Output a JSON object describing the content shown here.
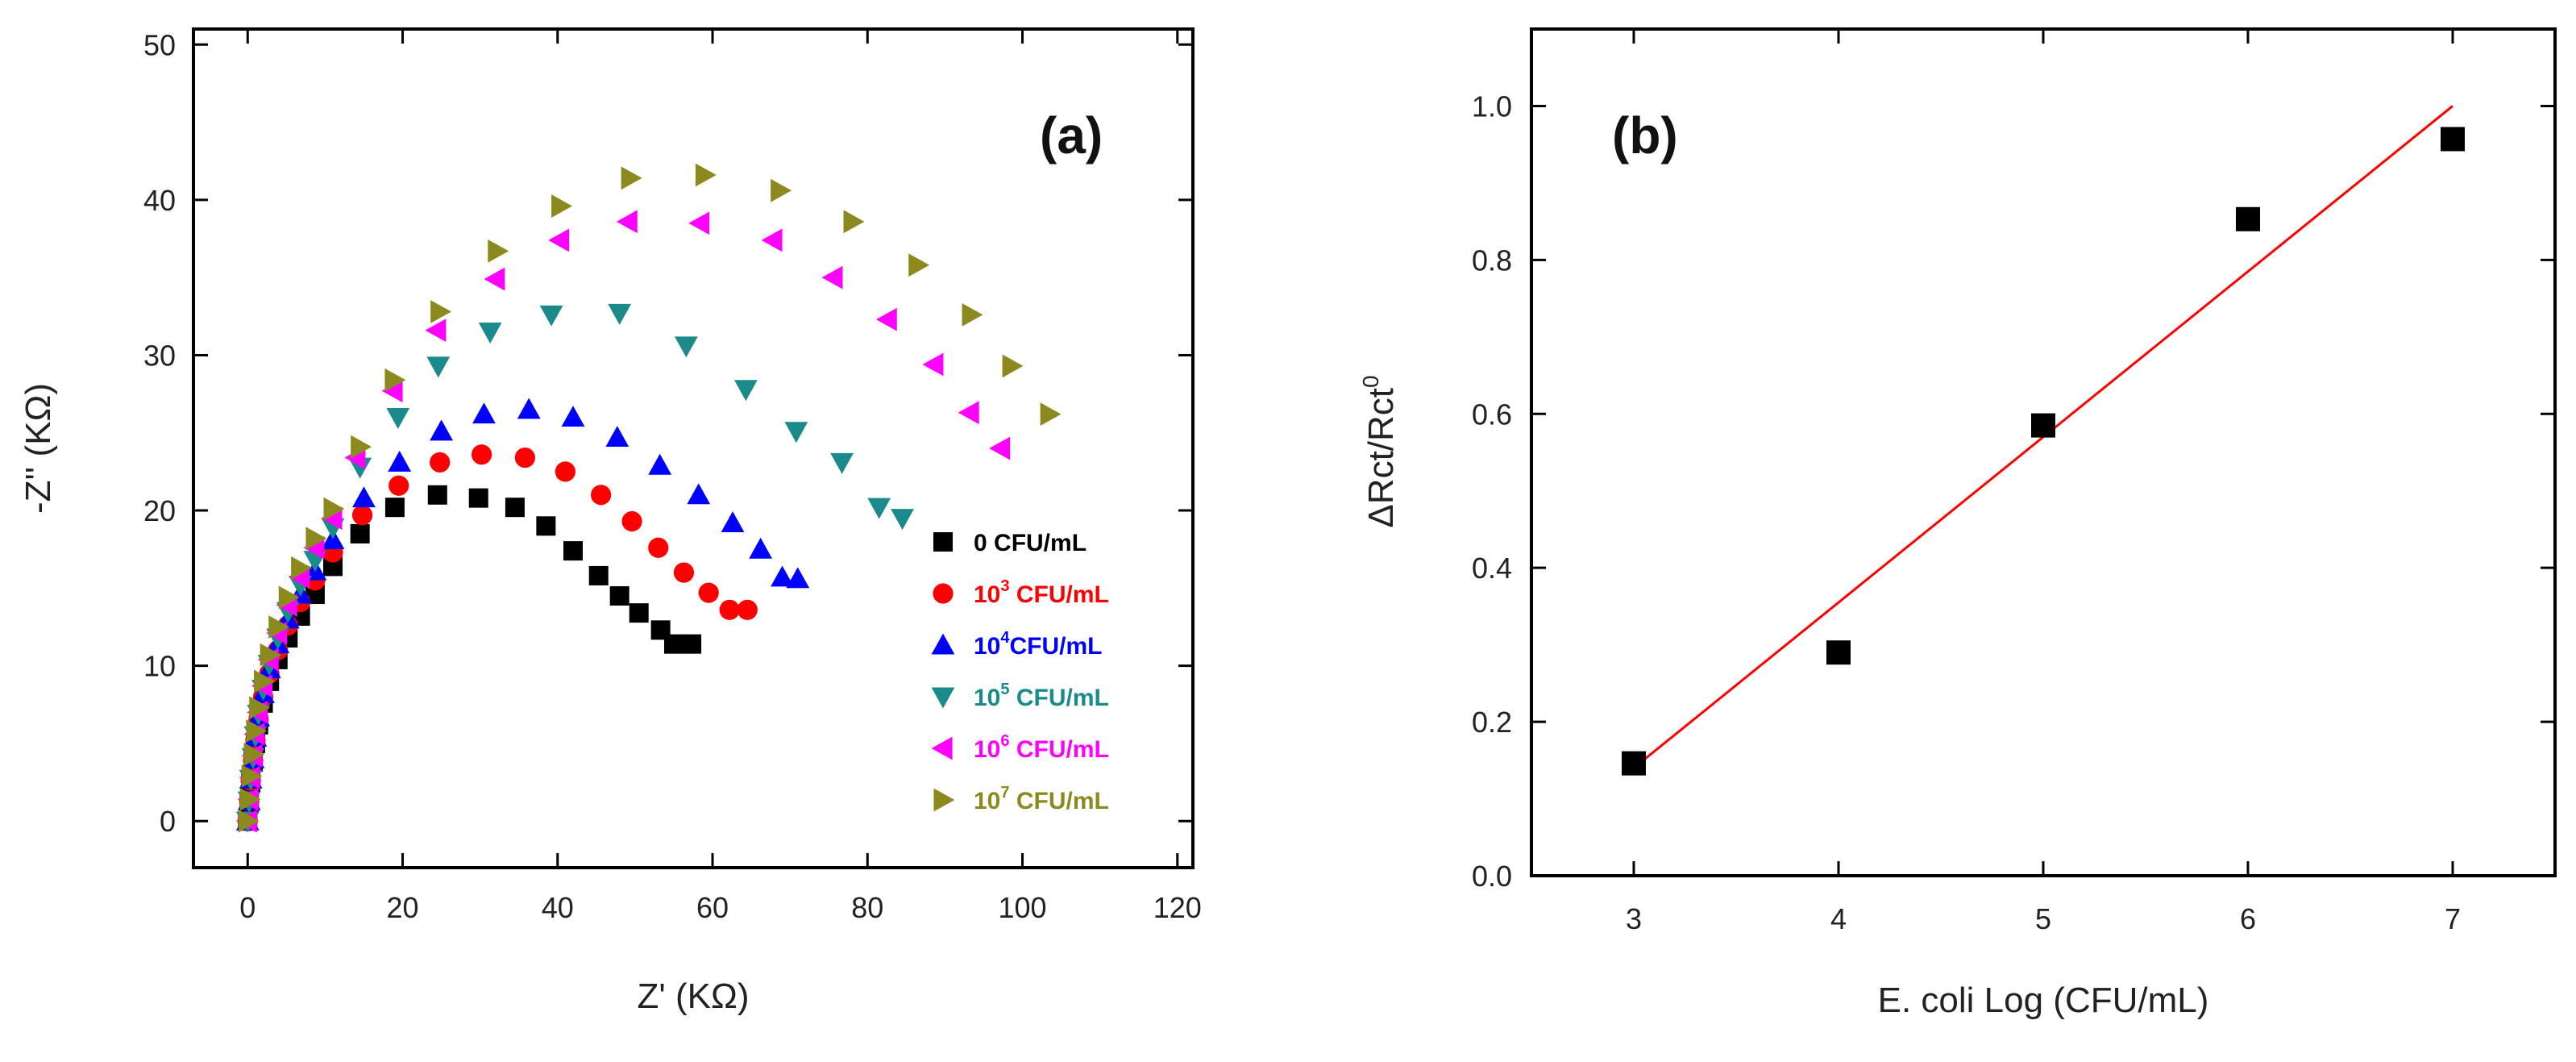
{
  "chart_data": [
    {
      "type": "scatter",
      "panel_label": "(a)",
      "xlabel": "Z' (KΩ)",
      "ylabel": "-Z'' (KΩ)",
      "xlim": [
        -7,
        122
      ],
      "ylim": [
        -3,
        51
      ],
      "xticks": [
        0,
        20,
        40,
        60,
        80,
        100,
        120
      ],
      "yticks": [
        0,
        10,
        20,
        30,
        40,
        50
      ],
      "grid": false,
      "legend_position": "right",
      "series": [
        {
          "name": "0 CFU/mL",
          "base": "0",
          "exp": "",
          "unit": " CFU/mL",
          "color": "#000000",
          "marker": "square",
          "x": [
            0.0,
            0.2,
            0.4,
            0.7,
            1.0,
            1.4,
            2.0,
            2.8,
            3.9,
            5.2,
            6.8,
            8.7,
            11.0,
            14.5,
            19.0,
            24.5,
            29.8,
            34.5,
            38.5,
            42.0,
            45.3,
            48.0,
            50.5,
            53.3,
            55.0,
            57.3
          ],
          "y": [
            0.0,
            1.2,
            2.5,
            3.8,
            5.0,
            6.2,
            7.6,
            9.0,
            10.4,
            11.8,
            13.2,
            14.6,
            16.4,
            18.5,
            20.2,
            21.0,
            20.8,
            20.2,
            19.0,
            17.4,
            15.8,
            14.5,
            13.4,
            12.3,
            11.4,
            11.4
          ]
        },
        {
          "name": "10^3 CFU/mL",
          "base": "10",
          "exp": "3",
          "unit": " CFU/mL",
          "color": "#ff0000",
          "marker": "circle",
          "x": [
            0.0,
            0.2,
            0.4,
            0.7,
            1.0,
            1.4,
            2.0,
            2.8,
            3.9,
            5.2,
            6.8,
            8.7,
            11.0,
            14.8,
            19.5,
            24.8,
            30.2,
            35.8,
            41.0,
            45.6,
            49.6,
            53.0,
            56.3,
            59.5,
            62.2,
            64.5
          ],
          "y": [
            0.0,
            1.3,
            2.6,
            3.9,
            5.2,
            6.5,
            8.0,
            9.5,
            11.0,
            12.6,
            14.1,
            15.5,
            17.3,
            19.7,
            21.6,
            23.1,
            23.6,
            23.4,
            22.5,
            21.0,
            19.3,
            17.6,
            16.0,
            14.7,
            13.6,
            13.6
          ]
        },
        {
          "name": "10^4 CFU/mL",
          "base": "10",
          "exp": "4",
          "unit": "CFU/mL",
          "color": "#0000ff",
          "marker": "triangle-up",
          "x": [
            0.0,
            0.2,
            0.4,
            0.7,
            1.0,
            1.4,
            2.0,
            2.8,
            3.9,
            5.2,
            6.8,
            8.7,
            11.0,
            15.0,
            19.6,
            25.0,
            30.5,
            36.3,
            42.0,
            47.7,
            53.2,
            58.2,
            62.6,
            66.2,
            69.0,
            71.0
          ],
          "y": [
            0.0,
            1.3,
            2.7,
            4.0,
            5.4,
            6.7,
            8.2,
            9.8,
            11.4,
            13.0,
            14.6,
            16.1,
            18.1,
            20.8,
            23.1,
            25.1,
            26.2,
            26.5,
            26.0,
            24.7,
            22.9,
            21.0,
            19.2,
            17.5,
            15.7,
            15.6
          ]
        },
        {
          "name": "10^5 CFU/mL",
          "base": "10",
          "exp": "5",
          "unit": " CFU/mL",
          "color": "#1a8a8a",
          "marker": "triangle-down",
          "x": [
            0.0,
            0.2,
            0.4,
            0.7,
            1.0,
            1.4,
            2.0,
            2.8,
            3.9,
            5.2,
            6.8,
            8.7,
            11.0,
            14.5,
            19.4,
            24.6,
            31.3,
            39.2,
            48.0,
            56.6,
            64.3,
            70.8,
            76.7,
            81.5,
            84.5
          ],
          "y": [
            0.0,
            1.3,
            2.7,
            4.1,
            5.5,
            6.9,
            8.5,
            10.1,
            11.8,
            13.5,
            15.2,
            16.8,
            18.9,
            22.8,
            26.0,
            29.3,
            31.5,
            32.6,
            32.7,
            30.6,
            27.8,
            25.1,
            23.1,
            20.2,
            19.5
          ]
        },
        {
          "name": "10^6 CFU/mL",
          "base": "10",
          "exp": "6",
          "unit": " CFU/mL",
          "color": "#ff00ff",
          "marker": "triangle-left",
          "x": [
            0.0,
            0.2,
            0.4,
            0.7,
            1.0,
            1.4,
            2.0,
            2.8,
            3.9,
            5.2,
            6.8,
            8.7,
            11.0,
            14.0,
            18.8,
            24.4,
            32.0,
            40.3,
            49.1,
            58.4,
            67.8,
            75.6,
            82.6,
            88.6,
            93.2,
            97.2
          ],
          "y": [
            0.0,
            1.4,
            2.8,
            4.2,
            5.6,
            7.0,
            8.7,
            10.4,
            12.1,
            13.9,
            15.7,
            17.6,
            19.5,
            23.4,
            27.7,
            31.6,
            34.9,
            37.4,
            38.6,
            38.5,
            37.4,
            35.0,
            32.3,
            29.4,
            26.3,
            24.0
          ]
        },
        {
          "name": "10^7 CFU/mL",
          "base": "10",
          "exp": "7",
          "unit": " CFU/mL",
          "color": "#8c8a1e",
          "marker": "triangle-right",
          "x": [
            0.0,
            0.2,
            0.4,
            0.7,
            1.0,
            1.4,
            2.0,
            2.8,
            3.9,
            5.2,
            6.8,
            8.7,
            11.0,
            14.5,
            18.9,
            24.8,
            32.2,
            40.4,
            49.4,
            59.0,
            68.7,
            78.1,
            86.5,
            93.4,
            98.6,
            103.5
          ],
          "y": [
            0.0,
            1.4,
            2.9,
            4.3,
            5.8,
            7.3,
            9.0,
            10.7,
            12.5,
            14.4,
            16.3,
            18.2,
            20.1,
            24.1,
            28.4,
            32.8,
            36.7,
            39.6,
            41.4,
            41.6,
            40.6,
            38.6,
            35.8,
            32.6,
            29.3,
            26.2
          ]
        }
      ]
    },
    {
      "type": "scatter",
      "panel_label": "(b)",
      "xlabel": "E. coli Log (CFU/mL)",
      "ylabel_text": "ΔRct/Rct",
      "ylabel_sup": "0",
      "xlim": [
        2.5,
        7.5
      ],
      "ylim": [
        0.0,
        1.1
      ],
      "xticks": [
        3,
        4,
        5,
        6,
        7
      ],
      "yticks": [
        "0.0",
        "0.2",
        "0.4",
        "0.6",
        "0.8",
        "1.0"
      ],
      "grid": false,
      "series": [
        {
          "marker": "square",
          "color": "#000000",
          "x": [
            3,
            4,
            5,
            6,
            7
          ],
          "y": [
            0.146,
            0.29,
            0.585,
            0.853,
            0.957
          ]
        }
      ],
      "fit": {
        "color": "#ff0000",
        "x": [
          3,
          7
        ],
        "y": [
          0.14,
          1.0
        ]
      }
    }
  ]
}
